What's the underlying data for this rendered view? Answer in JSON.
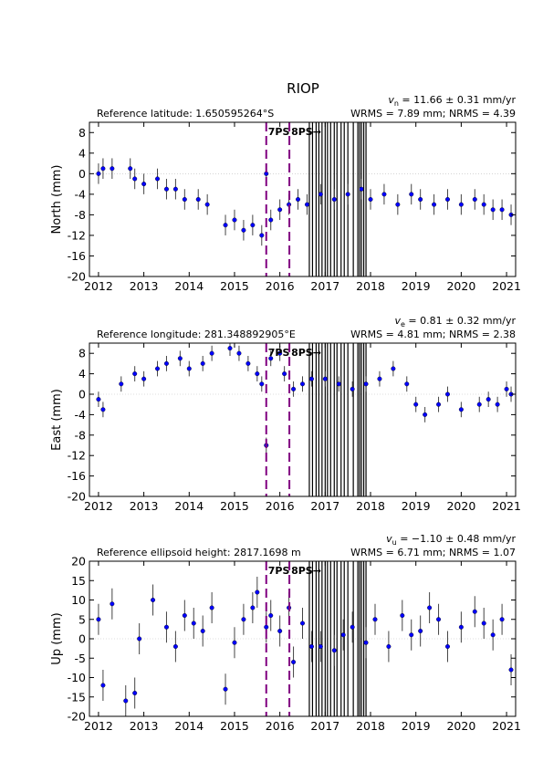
{
  "title": "RIOP",
  "events": [
    {
      "x": 2015.7,
      "label": "7PS",
      "color": "#800080"
    },
    {
      "x": 2016.21,
      "label": "8PS→",
      "color": "#800080"
    }
  ],
  "equipment_lines": [
    2016.65,
    2016.72,
    2016.8,
    2016.86,
    2016.93,
    2017.0,
    2017.05,
    2017.12,
    2017.2,
    2017.26,
    2017.35,
    2017.42,
    2017.5,
    2017.62,
    2017.72,
    2017.76,
    2017.8,
    2017.85,
    2017.9
  ],
  "chart_data": [
    {
      "type": "errorbar",
      "ylabel": "North (mm)",
      "reference": "Reference latitude: 1.650595264°S",
      "velocity": {
        "symbol": "v",
        "subscript": "n",
        "text": " = 11.66 ± 0.31 mm/yr"
      },
      "rms": "WRMS = 7.89 mm; NRMS = 4.39",
      "color": "#0000ff",
      "error_color": "#444444",
      "zero_line": true,
      "x": [
        2012.0,
        2012.1,
        2012.3,
        2012.7,
        2012.8,
        2013.0,
        2013.3,
        2013.5,
        2013.7,
        2013.9,
        2014.2,
        2014.4,
        2014.8,
        2015.0,
        2015.2,
        2015.4,
        2015.6,
        2015.7,
        2015.8,
        2016.0,
        2016.2,
        2016.4,
        2016.6,
        2016.9,
        2017.2,
        2017.5,
        2017.8,
        2018.0,
        2018.3,
        2018.6,
        2018.9,
        2019.1,
        2019.4,
        2019.7,
        2020.0,
        2020.3,
        2020.5,
        2020.7,
        2020.9,
        2021.1
      ],
      "values": [
        0,
        1,
        1,
        1,
        -1,
        -2,
        -1,
        -3,
        -3,
        -5,
        -5,
        -6,
        -10,
        -9,
        -11,
        -10,
        -12,
        0,
        -9,
        -7,
        -6,
        -5,
        -6,
        -4,
        -5,
        -4,
        -3,
        -5,
        -4,
        -6,
        -4,
        -5,
        -6,
        -5,
        -6,
        -5,
        -6,
        -7,
        -7,
        -8
      ],
      "errors": [
        2,
        2,
        2,
        2,
        2,
        2,
        2,
        2,
        2,
        2,
        2,
        2,
        2,
        2,
        2,
        2,
        2,
        2,
        2,
        2,
        2,
        2,
        2,
        2,
        2,
        2,
        2,
        2,
        2,
        2,
        2,
        2,
        2,
        2,
        2,
        2,
        2,
        2,
        2,
        2
      ],
      "xlim": [
        2011.8,
        2021.2
      ],
      "xticks": [
        2012,
        2013,
        2014,
        2015,
        2016,
        2017,
        2018,
        2019,
        2020,
        2021
      ],
      "ylim": [
        -20,
        10
      ],
      "yticks": [
        -20,
        -16,
        -12,
        -8,
        -4,
        0,
        4,
        8
      ]
    },
    {
      "type": "errorbar",
      "ylabel": "East (mm)",
      "reference": "Reference longitude: 281.348892905°E",
      "velocity": {
        "symbol": "v",
        "subscript": "e",
        "text": " = 0.81 ± 0.32 mm/yr"
      },
      "rms": "WRMS = 4.81 mm; NRMS = 2.38",
      "color": "#0000ff",
      "error_color": "#444444",
      "zero_line": true,
      "x": [
        2012.0,
        2012.1,
        2012.5,
        2012.8,
        2013.0,
        2013.3,
        2013.5,
        2013.8,
        2014.0,
        2014.3,
        2014.5,
        2014.9,
        2015.1,
        2015.3,
        2015.5,
        2015.6,
        2015.7,
        2015.8,
        2016.0,
        2016.1,
        2016.3,
        2016.5,
        2016.7,
        2017.0,
        2017.3,
        2017.6,
        2017.9,
        2018.2,
        2018.5,
        2018.8,
        2019.0,
        2019.2,
        2019.5,
        2019.7,
        2020.0,
        2020.4,
        2020.6,
        2020.8,
        2021.0,
        2021.1
      ],
      "values": [
        -1,
        -3,
        2,
        4,
        3,
        5,
        6,
        7,
        5,
        6,
        8,
        9,
        8,
        6,
        4,
        2,
        -10,
        7,
        8,
        4,
        1,
        2,
        3,
        3,
        2,
        1,
        2,
        3,
        5,
        2,
        -2,
        -4,
        -2,
        0,
        -3,
        -2,
        -1,
        -2,
        1,
        0
      ],
      "errors": [
        1.5,
        1.5,
        1.5,
        1.5,
        1.5,
        1.5,
        1.5,
        1.5,
        1.5,
        1.5,
        1.5,
        1.5,
        1.5,
        1.5,
        1.5,
        1.5,
        1.5,
        1.5,
        1.5,
        1.5,
        1.5,
        1.5,
        1.5,
        1.5,
        1.5,
        1.5,
        1.5,
        1.5,
        1.5,
        1.5,
        1.5,
        1.5,
        1.5,
        1.5,
        1.5,
        1.5,
        1.5,
        1.5,
        1.5,
        1.5
      ],
      "xlim": [
        2011.8,
        2021.2
      ],
      "xticks": [
        2012,
        2013,
        2014,
        2015,
        2016,
        2017,
        2018,
        2019,
        2020,
        2021
      ],
      "ylim": [
        -20,
        10
      ],
      "yticks": [
        -20,
        -16,
        -12,
        -8,
        -4,
        0,
        4,
        8
      ]
    },
    {
      "type": "errorbar",
      "ylabel": "Up (mm)",
      "reference": "Reference ellipsoid height: 2817.1698 m",
      "velocity": {
        "symbol": "v",
        "subscript": "u",
        "text": " = −1.10 ± 0.48 mm/yr"
      },
      "rms": "WRMS = 6.71 mm; NRMS = 1.07",
      "color": "#0000ff",
      "error_color": "#444444",
      "zero_line": true,
      "x": [
        2012.0,
        2012.1,
        2012.3,
        2012.6,
        2012.8,
        2012.9,
        2013.2,
        2013.5,
        2013.7,
        2013.9,
        2014.1,
        2014.3,
        2014.5,
        2014.8,
        2015.0,
        2015.2,
        2015.4,
        2015.5,
        2015.7,
        2015.8,
        2016.0,
        2016.2,
        2016.3,
        2016.5,
        2016.7,
        2016.9,
        2017.2,
        2017.4,
        2017.6,
        2017.9,
        2018.1,
        2018.4,
        2018.7,
        2018.9,
        2019.1,
        2019.3,
        2019.5,
        2019.7,
        2020.0,
        2020.3,
        2020.5,
        2020.7,
        2020.9,
        2021.1
      ],
      "values": [
        5,
        -12,
        9,
        -16,
        -14,
        0,
        10,
        3,
        -2,
        6,
        4,
        2,
        8,
        -13,
        -1,
        5,
        8,
        12,
        3,
        6,
        2,
        8,
        -6,
        4,
        -2,
        -2,
        -3,
        1,
        3,
        -1,
        5,
        -2,
        6,
        1,
        2,
        8,
        5,
        -2,
        3,
        7,
        4,
        1,
        5,
        -8
      ],
      "errors": [
        4,
        4,
        4,
        4,
        4,
        4,
        4,
        4,
        4,
        4,
        4,
        4,
        4,
        4,
        4,
        4,
        4,
        4,
        4,
        4,
        4,
        4,
        4,
        4,
        4,
        4,
        4,
        4,
        4,
        4,
        4,
        4,
        4,
        4,
        4,
        4,
        4,
        4,
        4,
        4,
        4,
        4,
        4,
        4
      ],
      "xlim": [
        2011.8,
        2021.2
      ],
      "xticks": [
        2012,
        2013,
        2014,
        2015,
        2016,
        2017,
        2018,
        2019,
        2020,
        2021
      ],
      "ylim": [
        -20,
        20
      ],
      "yticks": [
        -20,
        -15,
        -10,
        -5,
        0,
        5,
        10,
        15,
        20
      ]
    }
  ]
}
